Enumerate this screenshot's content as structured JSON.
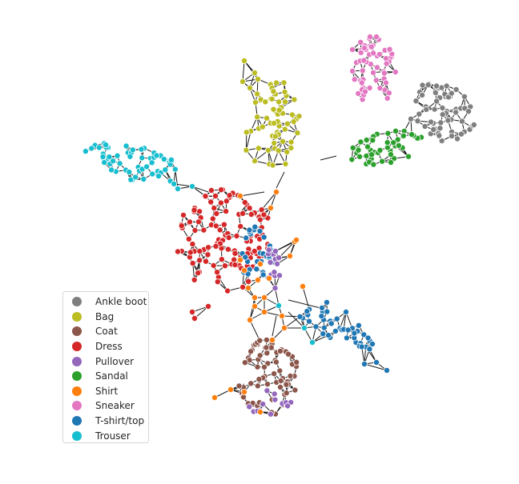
{
  "legend": {
    "items": [
      {
        "label": "Ankle boot",
        "color": "#7f7f7f",
        "key": "ankle"
      },
      {
        "label": "Bag",
        "color": "#bcbd22",
        "key": "bag"
      },
      {
        "label": "Coat",
        "color": "#8c564b",
        "key": "coat"
      },
      {
        "label": "Dress",
        "color": "#d62728",
        "key": "dress"
      },
      {
        "label": "Pullover",
        "color": "#9467bd",
        "key": "pullover"
      },
      {
        "label": "Sandal",
        "color": "#2ca02c",
        "key": "sandal"
      },
      {
        "label": "Shirt",
        "color": "#ff7f0e",
        "key": "shirt"
      },
      {
        "label": "Sneaker",
        "color": "#e377c2",
        "key": "sneaker"
      },
      {
        "label": "T-shirt/top",
        "color": "#1f77b4",
        "key": "tshirt"
      },
      {
        "label": "Trouser",
        "color": "#17becf",
        "key": "trouser"
      }
    ]
  }
}
